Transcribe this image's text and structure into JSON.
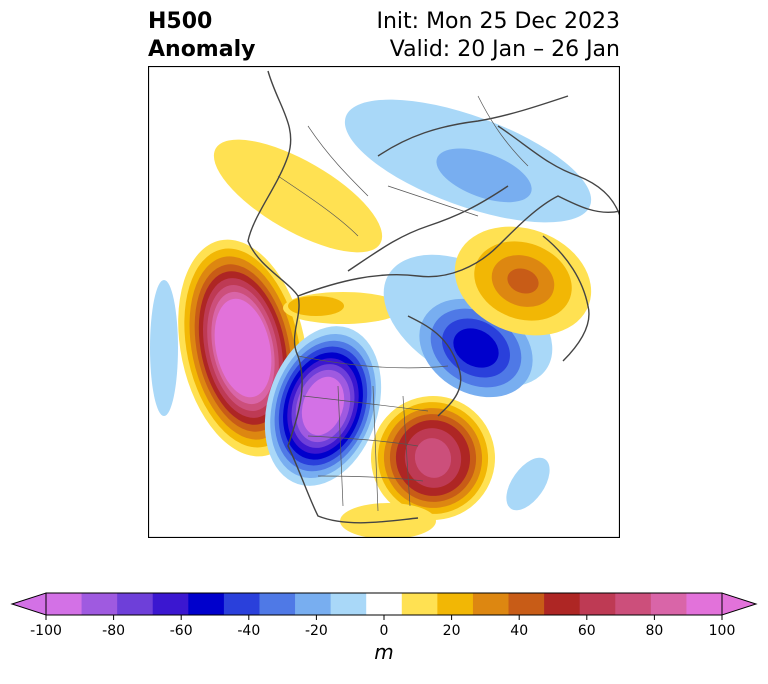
{
  "title": {
    "left_line1": "H500",
    "left_line2": "Anomaly",
    "right_line1": "Init: Mon 25 Dec 2023",
    "right_line2": "Valid: 20 Jan – 26 Jan"
  },
  "colorbar": {
    "unit_label": "m",
    "ticks": [
      "-100",
      "-80",
      "-60",
      "-40",
      "-20",
      "0",
      "20",
      "40",
      "60",
      "80",
      "100"
    ],
    "levels": [
      -100,
      -90,
      -80,
      -70,
      -60,
      -50,
      -40,
      -30,
      -20,
      -10,
      10,
      20,
      30,
      40,
      50,
      60,
      70,
      80,
      90,
      100
    ],
    "colors": [
      "#d371e6",
      "#9f5ae0",
      "#6e3fd9",
      "#3b17d0",
      "#0000cc",
      "#2a40db",
      "#4f79e6",
      "#78aef0",
      "#a9d8f8",
      "#ffffff",
      "#ffe152",
      "#f2b705",
      "#dd8711",
      "#c85c17",
      "#ae2624",
      "#be3a54",
      "#cc4f7b",
      "#d965a8",
      "#e272da"
    ],
    "extend_low_color": "#d371e6",
    "extend_high_color": "#e272da"
  },
  "map": {
    "projection": "polar-stereographic",
    "region": "North America / North Pacific / North Atlantic",
    "anomaly_centers": [
      {
        "name": "ne-pacific-ridge",
        "sign": "positive",
        "peak_m": 100
      },
      {
        "name": "western-us-trough",
        "sign": "negative",
        "peak_m": -100
      },
      {
        "name": "eastern-us-ridge",
        "sign": "positive",
        "peak_m": 70
      },
      {
        "name": "north-atlantic-low",
        "sign": "negative",
        "peak_m": -60
      },
      {
        "name": "greenland-high",
        "sign": "positive",
        "peak_m": 40
      },
      {
        "name": "alaska-high",
        "sign": "positive",
        "peak_m": 20
      },
      {
        "name": "siberia-arctic-low",
        "sign": "negative",
        "peak_m": -30
      }
    ]
  }
}
